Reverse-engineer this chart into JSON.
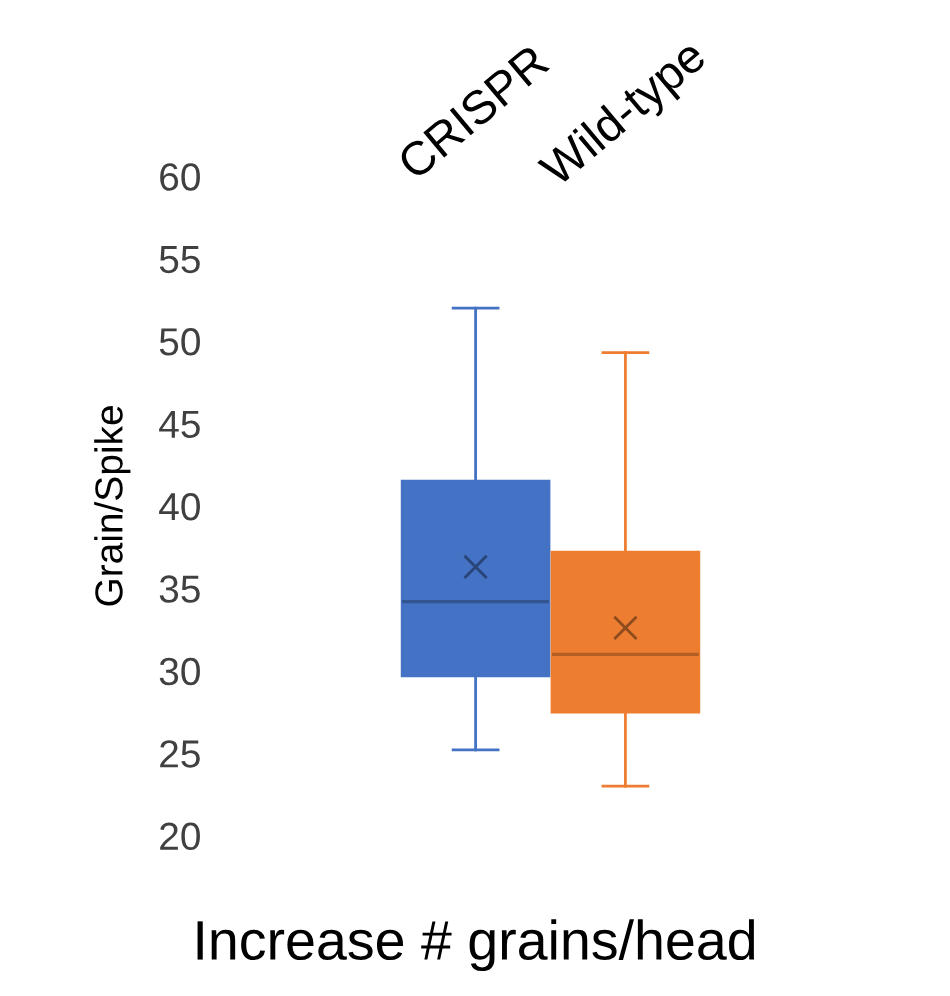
{
  "chart_data": {
    "type": "box",
    "xlabel": "Increase # grains/head",
    "ylabel": "Grain/Spike",
    "categories": [
      "CRISPR",
      "Wild-type"
    ],
    "colors": [
      "#4472c4",
      "#ed7d31"
    ],
    "boxes": [
      {
        "low": 25.2,
        "q1": 29.7,
        "median": 34.2,
        "q3": 41.5,
        "high": 52,
        "mean": 36.3
      },
      {
        "low": 23,
        "q1": 27.5,
        "median": 31,
        "q3": 37.2,
        "high": 49.3,
        "mean": 32.6
      }
    ],
    "ylim": [
      20,
      60
    ],
    "yticks": [
      20,
      25,
      30,
      35,
      40,
      45,
      50,
      55,
      60
    ],
    "grid": false,
    "legend": false,
    "marker": "cross"
  }
}
